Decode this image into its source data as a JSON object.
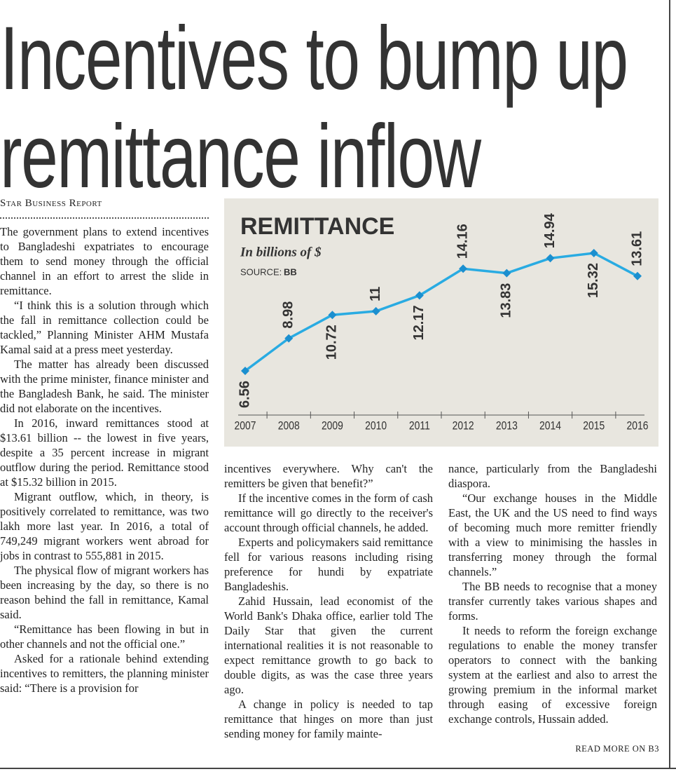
{
  "headline": [
    "Incentives to bump up",
    "remittance inflow"
  ],
  "byline": "Star Business Report",
  "columns": [
    [
      "The government plans to extend incentives to Bangladeshi expatriates to encourage them to send money through the official channel in an effort to arrest the slide in remittance.",
      "“I think this is a solution through which the fall in remittance collection could be tackled,” Planning Minister AHM Mustafa Kamal said at a press meet yesterday.",
      "The matter has already been discussed with the prime minister, finance minister and the Bangladesh Bank, he said. The minister did not elaborate on the incentives.",
      "In 2016, inward remittances stood at $13.61 billion -- the lowest in five years, despite a 35 percent increase in migrant outflow during the period. Remittance stood at $15.32 billion in 2015.",
      "Migrant outflow, which, in theory, is positively correlated to remittance, was two lakh more last year. In 2016, a total of 749,249 migrant workers went abroad for jobs in contrast to 555,881 in 2015.",
      "The physical flow of migrant workers has been increasing by the day, so there is no reason behind the fall in remittance, Kamal said.",
      "“Remittance has been flowing in but in other channels and not the official one.”",
      "Asked for a rationale behind extending incentives to remitters, the planning minister said: “There is a provision for"
    ],
    [
      "incentives everywhere. Why can't the remitters be given that benefit?”",
      "If the incentive comes in the form of cash remittance will go directly to the receiver's account through official channels, he added.",
      "Experts and policymakers said remittance fell for various reasons including rising preference for hundi by expatriate Bangladeshis.",
      "Zahid Hussain, lead economist of the World Bank's Dhaka office, earlier told The Daily Star that given the current international realities it is not reasonable to expect remittance growth to go back to double digits, as was the case three years ago.",
      "A change in policy is needed to tap remittance that hinges on more than just sending money for family mainte-"
    ],
    [
      "nance, particularly from the Bangladeshi diaspora.",
      "“Our exchange houses in the Middle East, the UK and the US need to find ways of becoming much more remitter friendly with a view to minimising the hassles in transferring money through the formal channels.”",
      "The BB needs to recognise that a money transfer currently takes various shapes and forms.",
      "It needs to reform the foreign exchange regulations to enable the money transfer operators to connect with the banking system at the earliest and also to arrest the growing premium in the informal market through easing of excessive foreign exchange controls, Hussain added."
    ]
  ],
  "continuation": "READ MORE ON B3",
  "chart_data": {
    "type": "line",
    "title": "REMITTANCE",
    "subtitle": "In billions of $",
    "source_label": "SOURCE:",
    "source": "BB",
    "categories": [
      "2007",
      "2008",
      "2009",
      "2010",
      "2011",
      "2012",
      "2013",
      "2014",
      "2015",
      "2016"
    ],
    "values": [
      6.56,
      8.98,
      10.72,
      11,
      12.17,
      14.16,
      13.83,
      14.94,
      15.32,
      13.61
    ],
    "color": "#29abe2",
    "marker_color": "#1b8fcf"
  }
}
